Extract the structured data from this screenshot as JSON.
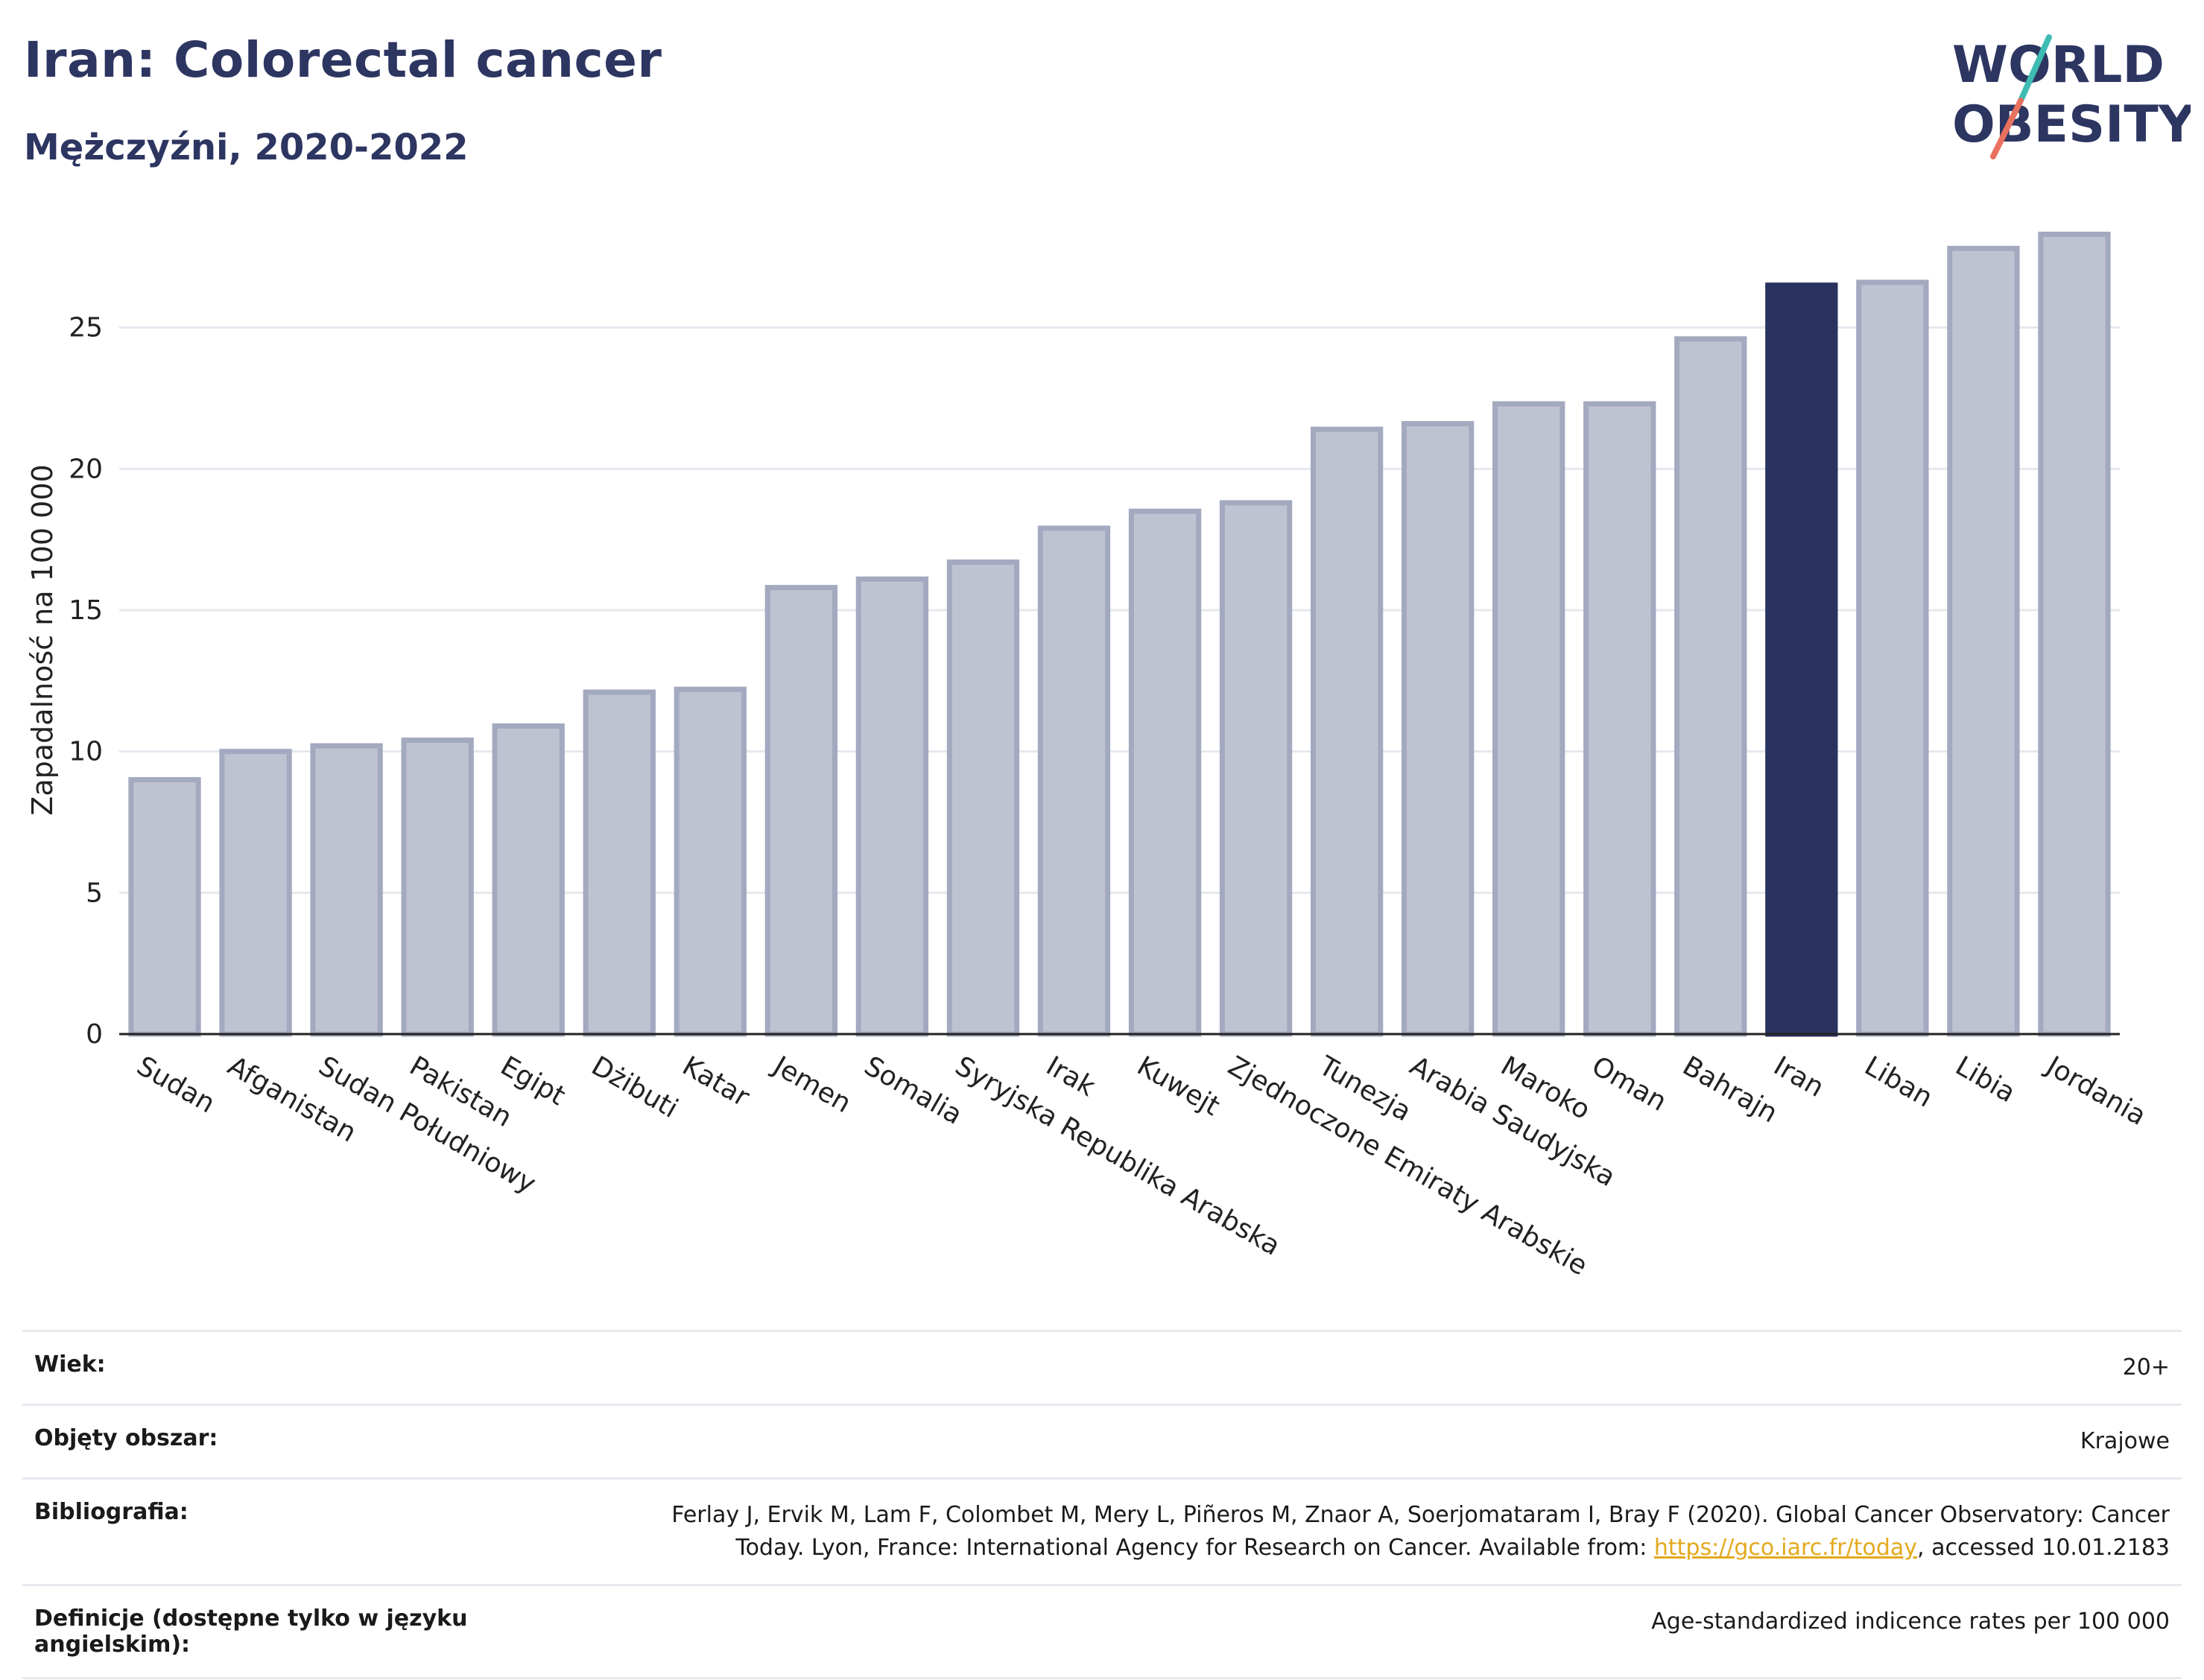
{
  "title": "Iran: Colorectal cancer",
  "subtitle": "Mężczyźni, 2020-2022",
  "logo": {
    "line1": "WORLD",
    "line2": "OBESITY"
  },
  "colors": {
    "bar": "#bfc3d1",
    "bar_stroke": "#a3a9bf",
    "highlight": "#2a335f",
    "title": "#2d3561",
    "grid": "#e6e8ee"
  },
  "chart_data": {
    "type": "bar",
    "categories": [
      "Sudan",
      "Afganistan",
      "Sudan Południowy",
      "Pakistan",
      "Egipt",
      "Dżibuti",
      "Katar",
      "Jemen",
      "Somalia",
      "Syryjska Republika Arabska",
      "Irak",
      "Kuwejt",
      "Zjednoczone Emiraty Arabskie",
      "Tunezja",
      "Arabia Saudyjska",
      "Maroko",
      "Oman",
      "Bahrajn",
      "Iran",
      "Liban",
      "Libia",
      "Jordania"
    ],
    "values": [
      9.0,
      10.0,
      10.2,
      10.4,
      10.9,
      12.1,
      12.2,
      15.8,
      16.1,
      16.7,
      17.9,
      18.5,
      18.8,
      21.4,
      21.6,
      22.3,
      22.3,
      24.6,
      26.5,
      26.6,
      27.8,
      28.3
    ],
    "highlight": "Iran",
    "ylabel": "Zapadalność na 100 000",
    "xlabel": "",
    "ylim": [
      0,
      30
    ],
    "yticks": [
      0,
      5,
      10,
      15,
      20,
      25
    ],
    "grid": true
  },
  "meta": {
    "age_label": "Wiek:",
    "age_value": "20+",
    "coverage_label": "Objęty obszar:",
    "coverage_value": "Krajowe",
    "bibliography_label": "Bibliografia:",
    "bibliography_line1": "Ferlay J, Ervik M, Lam F, Colombet M, Mery L, Piñeros M, Znaor A, Soerjomataram I, Bray F (2020). Global Cancer Observatory: Cancer",
    "bibliography_line2_pre": "Today. Lyon, France: International Agency for Research on Cancer. Available from: ",
    "bibliography_link": "https://gco.iarc.fr/today",
    "bibliography_line2_post": ", accessed 10.01.2183",
    "definitions_label": "Definicje (dostępne tylko w języku angielskim):",
    "definitions_value": "Age-standardized indicence rates per 100 000"
  }
}
